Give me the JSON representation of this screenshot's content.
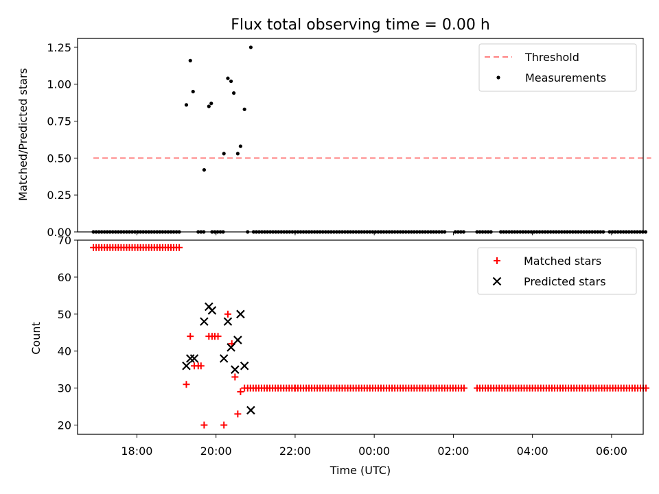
{
  "chart_data": {
    "title": "Flux total observing time = 0.00 h",
    "xlabel": "Time (UTC)",
    "x_units": "hours since 00:00 UTC of first night (continuing past 24)",
    "xlim": [
      16.5,
      30.8
    ],
    "xticks": [
      {
        "value": 18,
        "label": "18:00"
      },
      {
        "value": 20,
        "label": "20:00"
      },
      {
        "value": 22,
        "label": "22:00"
      },
      {
        "value": 24,
        "label": "00:00"
      },
      {
        "value": 26,
        "label": "02:00"
      },
      {
        "value": 28,
        "label": "04:00"
      },
      {
        "value": 30,
        "label": "06:00"
      }
    ],
    "panels": [
      {
        "type": "scatter",
        "ylabel": "Matched/Predicted stars",
        "ylim": [
          0,
          1.31
        ],
        "yticks": [
          {
            "value": 0,
            "label": "0.00"
          },
          {
            "value": 0.25,
            "label": "0.25"
          },
          {
            "value": 0.5,
            "label": "0.50"
          },
          {
            "value": 0.75,
            "label": "0.75"
          },
          {
            "value": 1.0,
            "label": "1.00"
          },
          {
            "value": 1.25,
            "label": "1.25"
          }
        ],
        "legend_position": "top-right",
        "series": [
          {
            "name": "Threshold",
            "kind": "dashed-line",
            "color": "#ff8080",
            "x": [
              16.9,
              31.0
            ],
            "y": [
              0.5,
              0.5
            ]
          },
          {
            "name": "Measurements",
            "kind": "dots",
            "color": "#000000",
            "points": [
              [
                19.25,
                0.86
              ],
              [
                19.35,
                1.16
              ],
              [
                19.42,
                0.95
              ],
              [
                19.7,
                0.42
              ],
              [
                19.82,
                0.85
              ],
              [
                19.88,
                0.87
              ],
              [
                20.2,
                0.53
              ],
              [
                20.3,
                1.04
              ],
              [
                20.38,
                1.02
              ],
              [
                20.45,
                0.94
              ],
              [
                20.55,
                0.53
              ],
              [
                20.62,
                0.58
              ],
              [
                20.72,
                0.83
              ],
              [
                20.88,
                1.25
              ]
            ],
            "zero_value_runs": [
              [
                16.9,
                19.1,
                0.07
              ],
              [
                19.55,
                19.7,
                0.07
              ],
              [
                19.9,
                20.2,
                0.07
              ],
              [
                20.8,
                20.82,
                0.07
              ],
              [
                20.95,
                25.8,
                0.07
              ],
              [
                26.05,
                26.3,
                0.07
              ],
              [
                26.6,
                27.0,
                0.07
              ],
              [
                27.2,
                29.8,
                0.07
              ],
              [
                29.95,
                30.9,
                0.07
              ]
            ]
          }
        ]
      },
      {
        "type": "scatter",
        "ylabel": "Count",
        "ylim": [
          17.5,
          70
        ],
        "yticks": [
          {
            "value": 20,
            "label": "20"
          },
          {
            "value": 30,
            "label": "30"
          },
          {
            "value": 40,
            "label": "40"
          },
          {
            "value": 50,
            "label": "50"
          },
          {
            "value": 60,
            "label": "60"
          },
          {
            "value": 70,
            "label": "70"
          }
        ],
        "legend_position": "top-right",
        "series": [
          {
            "name": "Matched stars",
            "kind": "plus",
            "color": "#ff0000",
            "points": [
              [
                19.25,
                31
              ],
              [
                19.35,
                44
              ],
              [
                19.45,
                36
              ],
              [
                19.55,
                36
              ],
              [
                19.62,
                36
              ],
              [
                19.7,
                20
              ],
              [
                19.82,
                44
              ],
              [
                19.9,
                44
              ],
              [
                19.97,
                44
              ],
              [
                20.05,
                44
              ],
              [
                20.2,
                20
              ],
              [
                20.3,
                50
              ],
              [
                20.4,
                42
              ],
              [
                20.48,
                33
              ],
              [
                20.55,
                23
              ],
              [
                20.62,
                29
              ],
              [
                20.72,
                30
              ]
            ],
            "value_runs": [
              [
                16.9,
                19.1,
                0.07,
                68
              ],
              [
                20.8,
                22.0,
                0.07,
                30
              ],
              [
                22.0,
                26.3,
                0.07,
                30
              ],
              [
                26.6,
                30.9,
                0.07,
                30
              ]
            ]
          },
          {
            "name": "Predicted stars",
            "kind": "x",
            "color": "#000000",
            "points": [
              [
                19.25,
                36
              ],
              [
                19.35,
                38
              ],
              [
                19.45,
                38
              ],
              [
                19.7,
                48
              ],
              [
                19.82,
                52
              ],
              [
                19.9,
                51
              ],
              [
                20.2,
                38
              ],
              [
                20.3,
                48
              ],
              [
                20.38,
                41
              ],
              [
                20.48,
                35
              ],
              [
                20.55,
                43
              ],
              [
                20.62,
                50
              ],
              [
                20.72,
                36
              ],
              [
                20.88,
                24
              ]
            ]
          }
        ]
      }
    ]
  }
}
